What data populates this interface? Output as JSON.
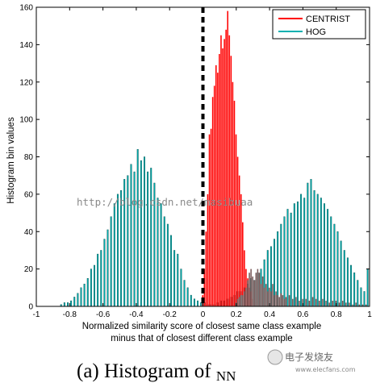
{
  "chart_data": {
    "type": "bar",
    "title": "",
    "ylabel": "Histogram bin values",
    "xlabel_lines": [
      "Normalized similarity score of closest same class example",
      "minus that of closest different class example"
    ],
    "xlim": [
      -1,
      1
    ],
    "ylim": [
      0,
      160
    ],
    "x_ticks": [
      -1,
      -0.8,
      -0.6,
      -0.4,
      -0.2,
      0,
      0.2,
      0.4,
      0.6,
      0.8,
      1
    ],
    "y_ticks": [
      0,
      20,
      40,
      60,
      80,
      100,
      120,
      140,
      160
    ],
    "grid": false,
    "legend_position": "top-right",
    "reference_line": {
      "x": 0,
      "style": "dashed",
      "color": "#000000"
    },
    "bin_width": 0.01,
    "series": [
      {
        "name": "CENTRIST",
        "color": "#ff0000",
        "x": [
          0.0,
          0.01,
          0.02,
          0.03,
          0.04,
          0.05,
          0.06,
          0.07,
          0.08,
          0.09,
          0.1,
          0.11,
          0.12,
          0.13,
          0.14,
          0.15,
          0.16,
          0.17,
          0.18,
          0.19,
          0.2,
          0.21,
          0.22,
          0.23,
          0.24,
          0.25,
          0.26,
          0.27,
          0.28,
          0.29,
          0.3,
          0.31
        ],
        "values": [
          6,
          20,
          40,
          60,
          92,
          95,
          112,
          118,
          129,
          125,
          135,
          145,
          138,
          143,
          148,
          158,
          145,
          134,
          120,
          110,
          92,
          80,
          70,
          60,
          45,
          30,
          20,
          15,
          10,
          8,
          4,
          2
        ]
      },
      {
        "name": "HOG",
        "color": "#00b0b0",
        "x": [
          -0.85,
          -0.83,
          -0.81,
          -0.79,
          -0.77,
          -0.75,
          -0.73,
          -0.71,
          -0.69,
          -0.67,
          -0.65,
          -0.63,
          -0.61,
          -0.59,
          -0.57,
          -0.55,
          -0.53,
          -0.51,
          -0.49,
          -0.47,
          -0.45,
          -0.43,
          -0.41,
          -0.39,
          -0.37,
          -0.35,
          -0.33,
          -0.31,
          -0.29,
          -0.27,
          -0.25,
          -0.23,
          -0.21,
          -0.19,
          -0.17,
          -0.15,
          -0.13,
          -0.11,
          -0.09,
          -0.07,
          -0.05,
          -0.03,
          -0.01,
          0.01,
          0.03,
          0.05,
          0.07,
          0.09,
          0.11,
          0.13,
          0.15,
          0.17,
          0.19,
          0.21,
          0.23,
          0.25,
          0.27,
          0.29,
          0.31,
          0.33,
          0.35,
          0.37,
          0.39,
          0.41,
          0.43,
          0.45,
          0.47,
          0.49,
          0.51,
          0.53,
          0.55,
          0.57,
          0.59,
          0.61,
          0.63,
          0.65,
          0.67,
          0.69,
          0.71,
          0.73,
          0.75,
          0.77,
          0.79,
          0.81,
          0.83,
          0.85,
          0.87,
          0.89,
          0.91,
          0.93,
          0.95,
          0.97,
          0.99
        ],
        "values": [
          1,
          2,
          2,
          3,
          5,
          7,
          10,
          12,
          15,
          20,
          22,
          28,
          30,
          36,
          41,
          48,
          55,
          60,
          62,
          68,
          70,
          76,
          72,
          84,
          78,
          80,
          72,
          74,
          66,
          58,
          55,
          48,
          44,
          38,
          30,
          28,
          20,
          14,
          10,
          6,
          4,
          3,
          2,
          2,
          1,
          1,
          1,
          2,
          3,
          3,
          4,
          5,
          6,
          8,
          8,
          10,
          12,
          15,
          14,
          18,
          20,
          25,
          30,
          32,
          36,
          40,
          44,
          48,
          52,
          50,
          55,
          56,
          60,
          58,
          66,
          68,
          62,
          60,
          58,
          55,
          52,
          48,
          44,
          40,
          35,
          30,
          26,
          22,
          18,
          14,
          10,
          8,
          20
        ]
      },
      {
        "name": "",
        "color": "#7a5a5a",
        "x": [
          0.2,
          0.21,
          0.22,
          0.23,
          0.24,
          0.25,
          0.26,
          0.27,
          0.28,
          0.29,
          0.3,
          0.31,
          0.32,
          0.33,
          0.34,
          0.35,
          0.36,
          0.37,
          0.38,
          0.39,
          0.4,
          0.41,
          0.42,
          0.43,
          0.44,
          0.45,
          0.46,
          0.47,
          0.48,
          0.49,
          0.5,
          0.52,
          0.54,
          0.56,
          0.58,
          0.6,
          0.62,
          0.64,
          0.66,
          0.68,
          0.7,
          0.72,
          0.74,
          0.76,
          0.78,
          0.8,
          0.82,
          0.84,
          0.86,
          0.88,
          0.9,
          0.92,
          0.94,
          0.96,
          0.98
        ],
        "values": [
          2,
          4,
          5,
          6,
          6,
          8,
          10,
          14,
          18,
          20,
          16,
          14,
          18,
          20,
          18,
          12,
          16,
          10,
          12,
          8,
          10,
          8,
          12,
          6,
          8,
          6,
          5,
          7,
          6,
          4,
          5,
          6,
          4,
          5,
          3,
          4,
          4,
          3,
          5,
          4,
          3,
          4,
          3,
          2,
          3,
          3,
          2,
          3,
          2,
          2,
          1,
          2,
          1,
          1,
          1
        ]
      }
    ]
  },
  "legend": [
    {
      "label": "CENTRIST",
      "color": "#ff0000"
    },
    {
      "label": "HOG",
      "color": "#00b0b0"
    }
  ],
  "watermark": "http://blog.csdn.net/masibuaa",
  "caption": {
    "prefix": "(a) Histogram of ",
    "subscript": "NN"
  },
  "logo": {
    "name": "电子发烧友",
    "url": "www.elecfans.com"
  }
}
